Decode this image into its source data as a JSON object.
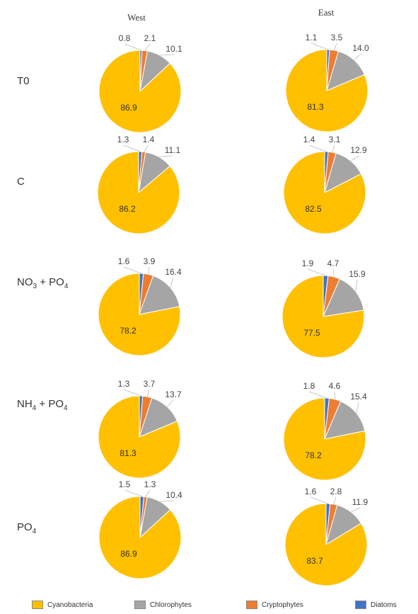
{
  "chart_data": {
    "type": "pie",
    "columns": [
      "West",
      "East"
    ],
    "rows": [
      {
        "label": "T0",
        "sub": "",
        "label2": "",
        "sub2": ""
      },
      {
        "label": "C",
        "sub": "",
        "label2": "",
        "sub2": ""
      },
      {
        "label": "NO",
        "sub": "3",
        "label2": "+ PO",
        "sub2": "4"
      },
      {
        "label": "NH",
        "sub": "4",
        "label2": "+ PO",
        "sub2": "4"
      },
      {
        "label": "PO",
        "sub": "4",
        "label2": "",
        "sub2": ""
      }
    ],
    "categories": [
      "Cyanobacteria",
      "Chlorophytes",
      "Cryptophytes",
      "Diatoms"
    ],
    "colors": {
      "Cyanobacteria": "#FFC000",
      "Chlorophytes": "#A5A5A5",
      "Cryptophytes": "#ED7D31",
      "Diatoms": "#4472C4"
    },
    "pies": [
      [
        {
          "Diatoms": "0.8",
          "Cryptophytes": "2.1",
          "Chlorophytes": "10.1",
          "Cyanobacteria": "86.9"
        },
        {
          "Diatoms": "1.1",
          "Cryptophytes": "3.5",
          "Chlorophytes": "14.0",
          "Cyanobacteria": "81.3"
        }
      ],
      [
        {
          "Diatoms": "1.3",
          "Cryptophytes": "1.4",
          "Chlorophytes": "11.1",
          "Cyanobacteria": "86.2"
        },
        {
          "Diatoms": "1.4",
          "Cryptophytes": "3.1",
          "Chlorophytes": "12.9",
          "Cyanobacteria": "82.5"
        }
      ],
      [
        {
          "Diatoms": "1.6",
          "Cryptophytes": "3.9",
          "Chlorophytes": "16.4",
          "Cyanobacteria": "78.2"
        },
        {
          "Diatoms": "1.9",
          "Cryptophytes": "4.7",
          "Chlorophytes": "15.9",
          "Cyanobacteria": "77.5"
        }
      ],
      [
        {
          "Diatoms": "1.3",
          "Cryptophytes": "3.7",
          "Chlorophytes": "13.7",
          "Cyanobacteria": "81.3"
        },
        {
          "Diatoms": "1.8",
          "Cryptophytes": "4.6",
          "Chlorophytes": "15.4",
          "Cyanobacteria": "78.2"
        }
      ],
      [
        {
          "Diatoms": "1.5",
          "Cryptophytes": "1.3",
          "Chlorophytes": "10.4",
          "Cyanobacteria": "86.9"
        },
        {
          "Diatoms": "1.6",
          "Cryptophytes": "2.8",
          "Chlorophytes": "11.9",
          "Cyanobacteria": "83.7"
        }
      ]
    ],
    "legend_position": "bottom"
  }
}
